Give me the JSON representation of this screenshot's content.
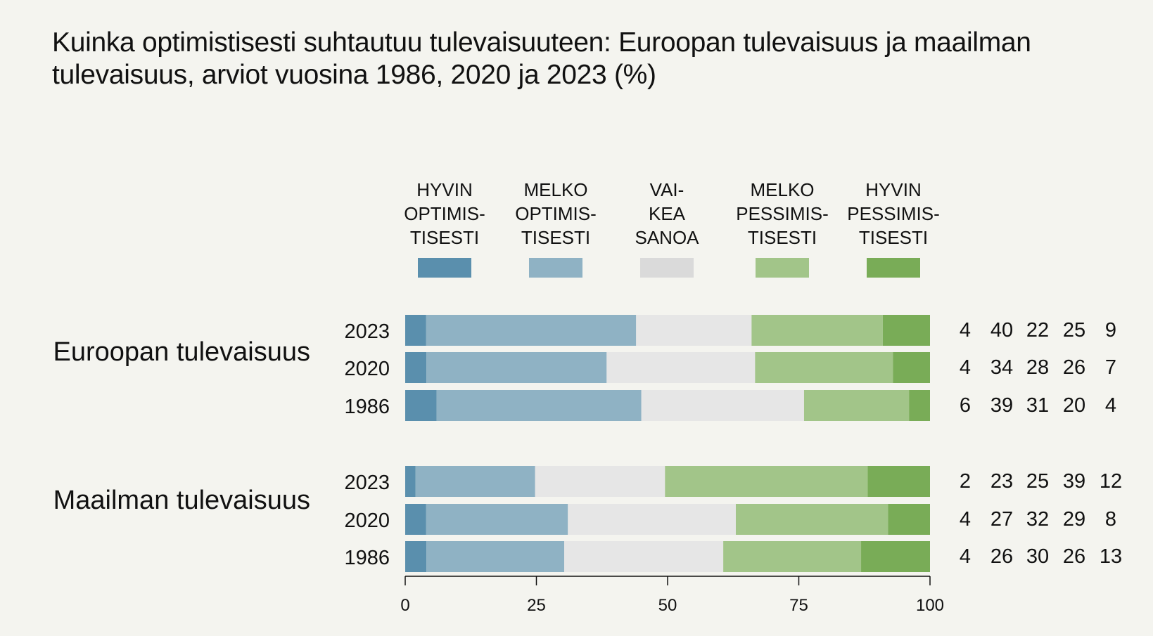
{
  "chart_data": {
    "type": "bar",
    "orientation": "horizontal",
    "stacked": true,
    "title": "Kuinka optimistisesti suhtautuu tulevaisuuteen: Euroopan tulevaisuus ja maailman tulevaisuus, arviot vuosina 1986, 2020 ja 2023 (%)",
    "xlabel": "",
    "ylabel": "",
    "xlim": [
      0,
      100
    ],
    "xticks": [
      0,
      25,
      50,
      75,
      100
    ],
    "grid": false,
    "legend_position": "top",
    "series": [
      {
        "name": "HYVIN OPTIMISTISESTI",
        "label_lines": [
          "HYVIN",
          "OPTIMIS-",
          "TISESTI"
        ],
        "color": "#5a8fad"
      },
      {
        "name": "MELKO OPTIMISTISESTI",
        "label_lines": [
          "MELKO",
          "OPTIMIS-",
          "TISESTI"
        ],
        "color": "#8fb2c4"
      },
      {
        "name": "VAIKEA SANOA",
        "label_lines": [
          "VAI-",
          "KEA",
          "SANOA"
        ],
        "color": "#e6e6e6"
      },
      {
        "name": "MELKO PESSIMISTISESTI",
        "label_lines": [
          "MELKO",
          "PESSIMIS-",
          "TISESTI"
        ],
        "color": "#a2c589"
      },
      {
        "name": "HYVIN PESSIMISTISESTI",
        "label_lines": [
          "HYVIN",
          "PESSIMIS-",
          "TISESTI"
        ],
        "color": "#79ac57"
      }
    ],
    "legend_swatch_colors": [
      "#5a8fad",
      "#8fb2c4",
      "#dadada",
      "#a2c589",
      "#79ac57"
    ],
    "groups": [
      {
        "name": "Euroopan tulevaisuus",
        "rows": [
          {
            "year": "2023",
            "values": [
              4,
              40,
              22,
              25,
              9
            ]
          },
          {
            "year": "2020",
            "values": [
              4,
              34,
              28,
              26,
              7
            ]
          },
          {
            "year": "1986",
            "values": [
              6,
              39,
              31,
              20,
              4
            ]
          }
        ]
      },
      {
        "name": "Maailman tulevaisuus",
        "rows": [
          {
            "year": "2023",
            "values": [
              2,
              23,
              25,
              39,
              12
            ]
          },
          {
            "year": "2020",
            "values": [
              4,
              27,
              32,
              29,
              8
            ]
          },
          {
            "year": "1986",
            "values": [
              4,
              26,
              30,
              26,
              13
            ]
          }
        ]
      }
    ]
  }
}
